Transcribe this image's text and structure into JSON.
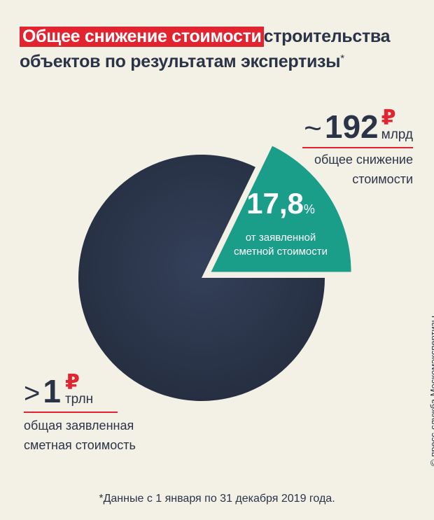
{
  "title": {
    "highlight": "Общее снижение стоимости",
    "rest_line1": "строительства",
    "line2": "объектов по результатам экспертизы",
    "asterisk": "*"
  },
  "colors": {
    "background": "#f3f0e6",
    "accent_red": "#e1242f",
    "pie_total": "#2b3447",
    "pie_reduction": "#1a9e8a",
    "text": "#2b3447"
  },
  "chart_data": {
    "type": "pie",
    "slices": [
      {
        "label": "общая заявленная сметная стоимость",
        "percent": 82.2
      },
      {
        "label": "общее снижение стоимости",
        "percent": 17.8
      }
    ],
    "slice_label": {
      "value": "17,8",
      "unit": "%",
      "text_line1": "от заявленной",
      "text_line2": "сметной стоимости"
    }
  },
  "reduction_callout": {
    "prefix": "~",
    "value": "192",
    "currency": "₽",
    "unit": "млрд",
    "desc_line1": "общее снижение",
    "desc_line2": "стоимости"
  },
  "total_callout": {
    "prefix": ">",
    "value": "1",
    "currency": "₽",
    "unit": "трлн",
    "desc_line1": "общая заявленная",
    "desc_line2": "сметная стоимость"
  },
  "credit": "© пресс-служба Москомэкспертизы",
  "footnote": "*Данные с 1 января по 31 декабря 2019 года."
}
